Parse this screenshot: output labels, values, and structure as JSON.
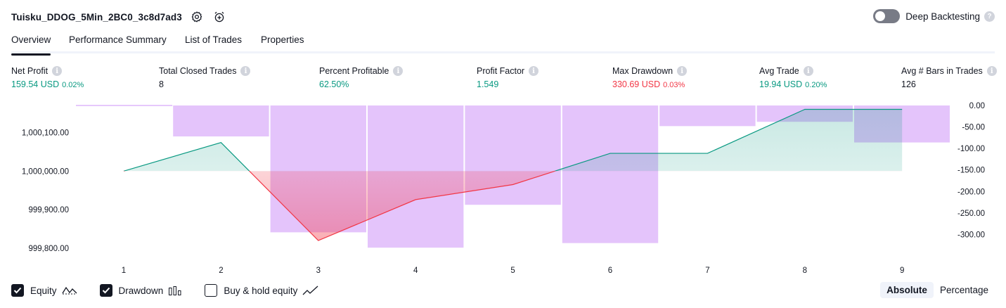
{
  "header": {
    "strategy_name": "Tuisku_DDOG_5Min_2BC0_3c8d7ad3",
    "settings_icon": "gear-icon",
    "alert_icon": "alarm-clock-add-icon",
    "deep_backtesting_label": "Deep Backtesting",
    "deep_backtesting_enabled": false,
    "help_glyph": "?"
  },
  "tabs": [
    {
      "label": "Overview",
      "active": true
    },
    {
      "label": "Performance Summary",
      "active": false
    },
    {
      "label": "List of Trades",
      "active": false
    },
    {
      "label": "Properties",
      "active": false
    }
  ],
  "metrics": [
    {
      "label": "Net Profit",
      "value": "159.54 USD",
      "pct": "0.02%",
      "tone": "pos"
    },
    {
      "label": "Total Closed Trades",
      "value": "8",
      "pct": "",
      "tone": "plain"
    },
    {
      "label": "Percent Profitable",
      "value": "62.50%",
      "pct": "",
      "tone": "pos"
    },
    {
      "label": "Profit Factor",
      "value": "1.549",
      "pct": "",
      "tone": "pos"
    },
    {
      "label": "Max Drawdown",
      "value": "330.69 USD",
      "pct": "0.03%",
      "tone": "neg"
    },
    {
      "label": "Avg Trade",
      "value": "19.94 USD",
      "pct": "0.20%",
      "tone": "pos"
    },
    {
      "label": "Avg # Bars in Trades",
      "value": "126",
      "pct": "",
      "tone": "plain"
    }
  ],
  "info_glyph": "i",
  "chart_data": {
    "type": "line",
    "x": [
      1,
      2,
      3,
      4,
      5,
      6,
      7,
      8,
      9
    ],
    "series": [
      {
        "name": "Equity",
        "axis": "left",
        "values": [
          1000000.0,
          1000074.0,
          999820.0,
          999926.0,
          999965.0,
          1000046.0,
          1000046.0,
          1000160.0,
          1000160.0
        ]
      },
      {
        "name": "Drawdown",
        "axis": "right",
        "type": "bar",
        "values": [
          0.0,
          -72.0,
          -295.0,
          -330.69,
          -231.0,
          -320.0,
          -48.0,
          -38.0,
          -86.0
        ]
      }
    ],
    "left_ticks": [
      "1,000,100.00",
      "1,000,000.00",
      "999,900.00",
      "999,800.00"
    ],
    "right_ticks": [
      "0.00",
      "-50.00",
      "-100.00",
      "-150.00",
      "-200.00",
      "-250.00",
      "-300.00"
    ],
    "x_ticks": [
      "1",
      "2",
      "3",
      "4",
      "5",
      "6",
      "7",
      "8",
      "9"
    ],
    "left_ylim": [
      999780,
      1000170
    ],
    "right_ylim": [
      -350,
      0
    ],
    "colors": {
      "profit": "#089981",
      "loss": "#f23645",
      "drawdown": "#ce93f8"
    }
  },
  "legend": [
    {
      "label": "Equity",
      "checked": true,
      "icon": "equity-line-icon"
    },
    {
      "label": "Drawdown",
      "checked": true,
      "icon": "drawdown-bars-icon"
    },
    {
      "label": "Buy & hold equity",
      "checked": false,
      "icon": "buy-hold-line-icon"
    }
  ],
  "modes": [
    {
      "label": "Absolute",
      "active": true
    },
    {
      "label": "Percentage",
      "active": false
    }
  ]
}
